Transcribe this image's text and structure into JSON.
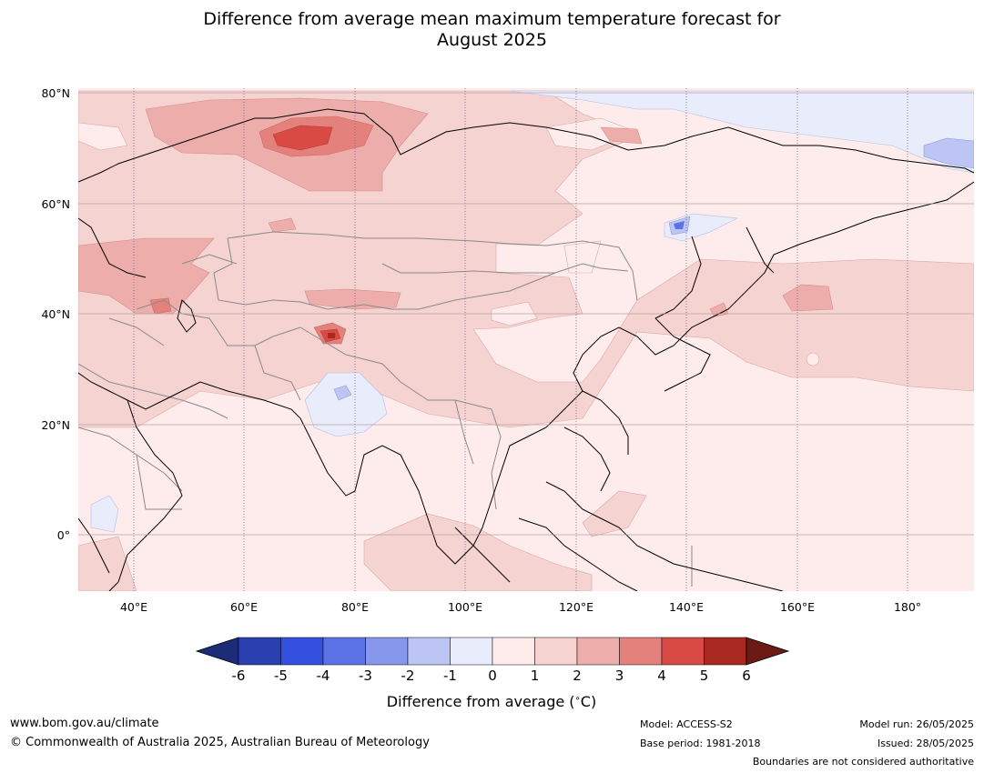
{
  "title_line1": "Difference from average mean maximum temperature forecast for",
  "title_line2": "August 2025",
  "lat_labels": [
    "80°N",
    "60°N",
    "40°N",
    "20°N",
    "0°"
  ],
  "lon_labels": [
    "40°E",
    "60°E",
    "80°E",
    "100°E",
    "120°E",
    "140°E",
    "160°E",
    "180°"
  ],
  "legend": {
    "title": "Difference from average ($^\\circ$C)",
    "title_text": "Difference from average (",
    "title_unit": "C)",
    "ticks": [
      "-6",
      "-5",
      "-4",
      "-3",
      "-2",
      "-1",
      "0",
      "1",
      "2",
      "3",
      "4",
      "5",
      "6"
    ],
    "colors": [
      "#1c2d78",
      "#2a3fb0",
      "#3450e0",
      "#5c73e6",
      "#8797ec",
      "#bcc5f4",
      "#e8ecfb",
      "#fdeceb",
      "#f5d3d1",
      "#edaeab",
      "#e5817c",
      "#d84a43",
      "#a9281f",
      "#6d1a14"
    ]
  },
  "footer": {
    "website": "www.bom.gov.au/climate",
    "copyright": "© Commonwealth of Australia 2025, Australian Bureau of Meteorology",
    "model": "Model: ACCESS-S2",
    "base_period": "Base period: 1981-2018",
    "model_run": "Model run: 26/05/2025",
    "issued": "Issued: 28/05/2025",
    "disclaimer": "Boundaries are not considered authoritative"
  }
}
